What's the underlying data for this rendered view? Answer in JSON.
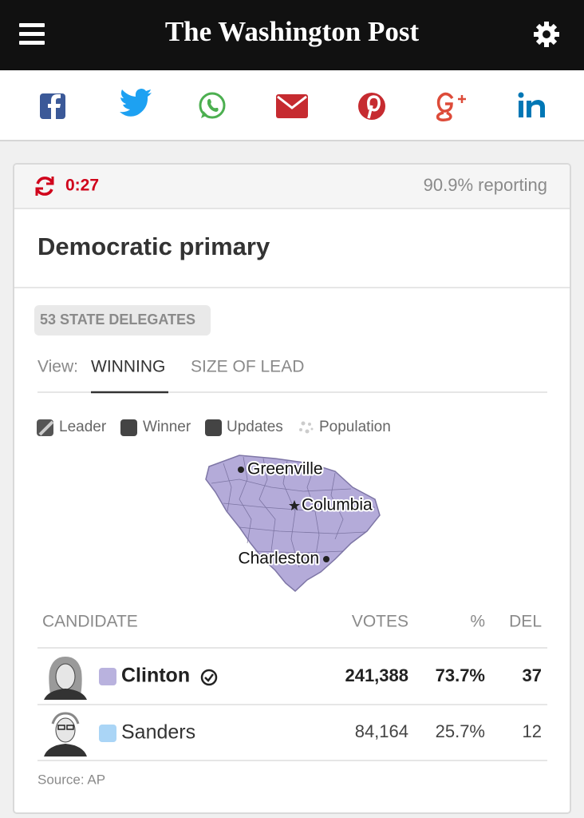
{
  "header": {
    "title": "The Washington Post"
  },
  "status": {
    "timer": "0:27",
    "reporting": "90.9% reporting"
  },
  "race": {
    "title": "Democratic primary",
    "delegates": "53 STATE DELEGATES"
  },
  "view": {
    "label": "View:",
    "tabs": [
      "WINNING",
      "SIZE OF LEAD"
    ]
  },
  "legend": [
    "Leader",
    "Winner",
    "Updates",
    "Population"
  ],
  "map": {
    "cities": [
      "Greenville",
      "Columbia",
      "Charleston"
    ]
  },
  "table": {
    "columns": [
      "CANDIDATE",
      "VOTES",
      "%",
      "DEL"
    ],
    "rows": [
      [
        "Clinton",
        "241,388",
        "73.7%",
        "37"
      ],
      [
        "Sanders",
        "84,164",
        "25.7%",
        "12"
      ]
    ]
  },
  "source": "Source: AP"
}
